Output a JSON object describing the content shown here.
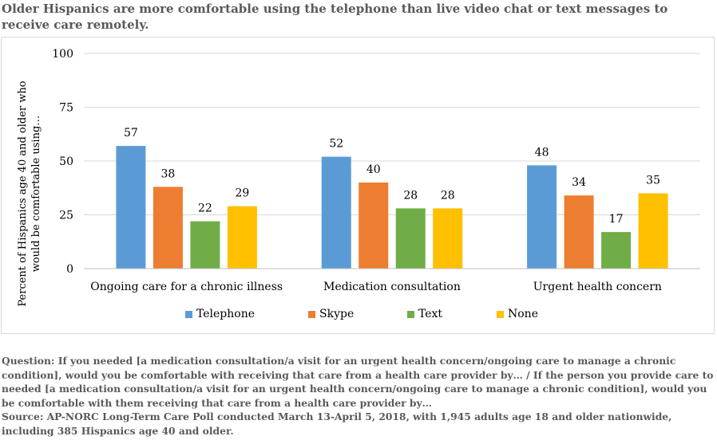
{
  "title": "Older Hispanics are more comfortable using the telephone than live video chat or text messages to receive care remotely.",
  "footer": {
    "question": "Question: If you needed [a medication consultation/a visit for an urgent health concern/ongoing care to manage a chronic condition], would you be comfortable with receiving that care from a health care provider by… / If the person you provide care to needed [a medication consultation/a visit for an urgent health concern/ongoing care to manage a chronic condition], would you be comfortable with them receiving that care from a health care provider by…",
    "source": "Source: AP-NORC Long-Term Care Poll conducted March 13-April 5, 2018, with 1,945 adults age 18 and older nationwide, including 385 Hispanics age 40 and older."
  },
  "chart_data": {
    "type": "bar",
    "title": "Older Hispanics are more comfortable using the telephone than live video chat or text messages to receive care remotely.",
    "xlabel": "",
    "ylabel": "Percent of Hispanics age 40 and older who would be comfortable using…",
    "ylim": [
      0,
      100
    ],
    "yticks": [
      "0",
      "25",
      "50",
      "75",
      "100"
    ],
    "grid": true,
    "legend_position": "bottom",
    "categories": [
      "Ongoing care for a chronic illness",
      "Medication consultation",
      "Urgent health concern"
    ],
    "series": [
      {
        "name": "Telephone",
        "color": "#5B9BD5",
        "values": [
          57,
          52,
          48
        ]
      },
      {
        "name": "Skype",
        "color": "#ED7D31",
        "values": [
          38,
          40,
          34
        ]
      },
      {
        "name": "Text",
        "color": "#70AD47",
        "values": [
          22,
          28,
          17
        ]
      },
      {
        "name": "None",
        "color": "#FFC000",
        "values": [
          29,
          28,
          35
        ]
      }
    ]
  }
}
